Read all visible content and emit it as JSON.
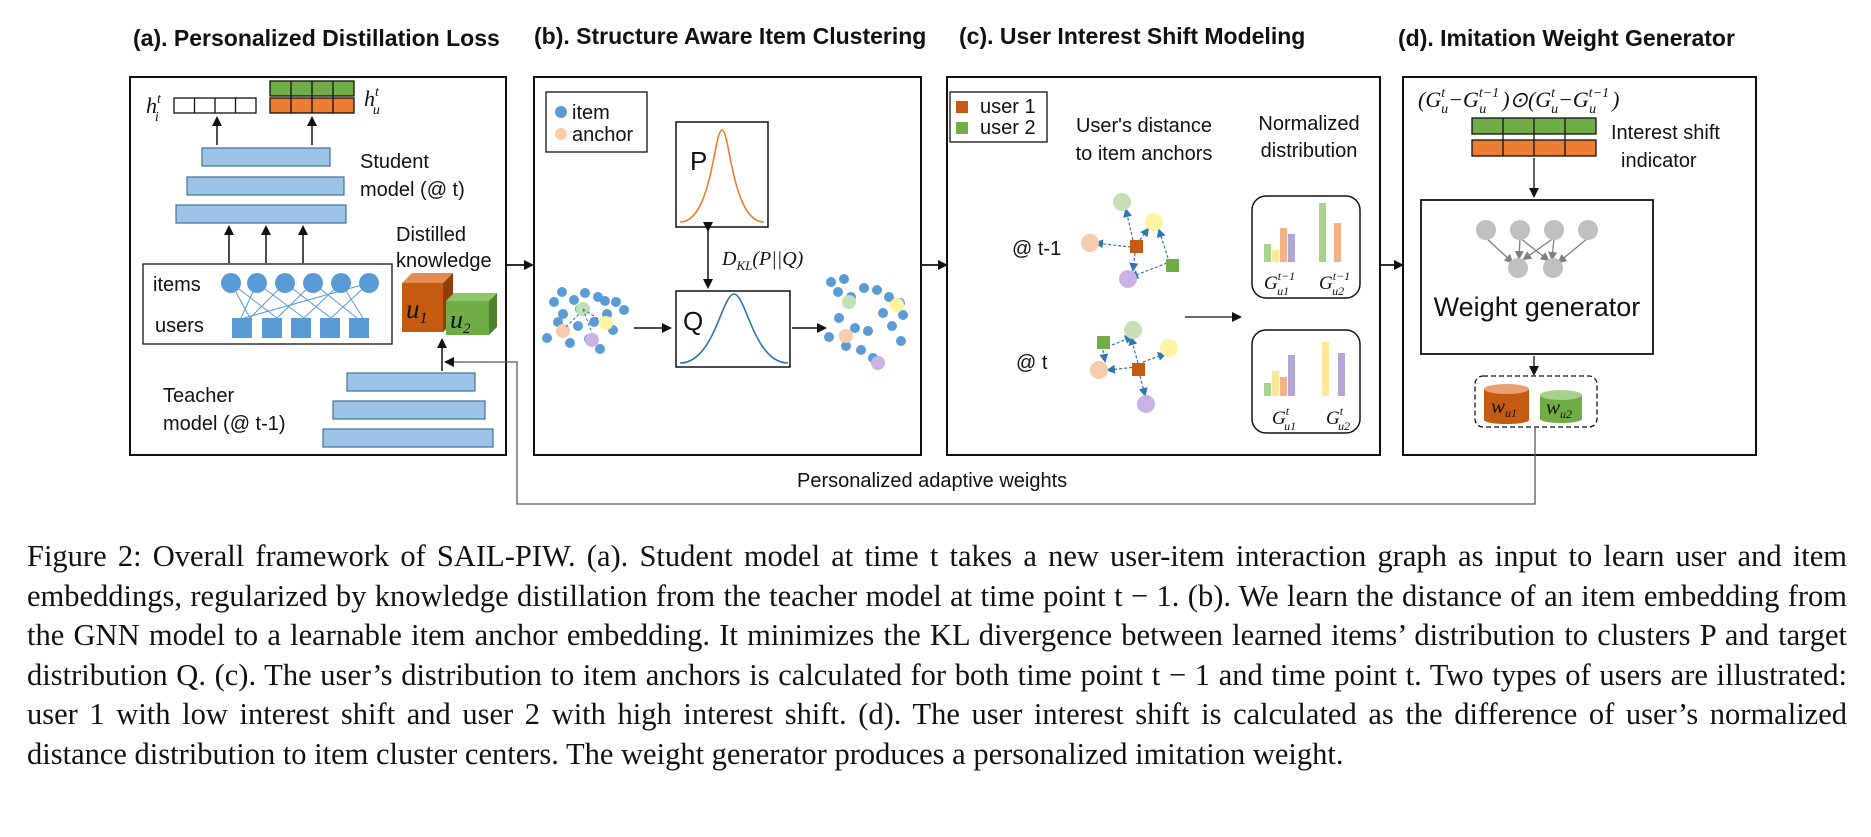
{
  "panels": {
    "a": {
      "title": "(a).  Personalized Distillation Loss",
      "student_line1": "Student",
      "student_line2": "model (@ t)",
      "distilled_line1": "Distilled",
      "distilled_line2": "knowledge",
      "items": "items",
      "users": "users",
      "teacher_line1": "Teacher",
      "teacher_line2": "model (@ t-1)",
      "h_item": "h",
      "h_item_sub": "i",
      "h_item_sup": "t",
      "h_user": "h",
      "h_user_sub": "u",
      "h_user_sup": "t",
      "cube1": "u",
      "cube1_sub": "1",
      "cube2": "u",
      "cube2_sub": "2"
    },
    "b": {
      "title": "(b). Structure Aware Item Clustering",
      "legend_item": "item",
      "legend_anchor": "anchor",
      "p_label": "P",
      "q_label": "Q",
      "kl": "D",
      "kl_sub": "KL",
      "kl_args": "(P||Q)"
    },
    "c": {
      "title": "(c). User Interest Shift Modeling",
      "legend_user1": "user 1",
      "legend_user2": "user 2",
      "dist_line1": "User's distance",
      "dist_line2": "to item anchors",
      "norm_line1": "Normalized",
      "norm_line2": "distribution",
      "time_prev": "@ t-1",
      "time_now": "@ t",
      "g1_prev": "G",
      "g1_prev_sub": "u1",
      "g1_prev_sup": "t−1",
      "g2_prev": "G",
      "g2_prev_sub": "u2",
      "g2_prev_sup": "t−1",
      "g1_now": "G",
      "g1_now_sub": "u1",
      "g1_now_sup": "t",
      "g2_now": "G",
      "g2_now_sub": "u2",
      "g2_now_sup": "t"
    },
    "d": {
      "title": "(d). Imitation Weight Generator",
      "formula": "(G",
      "formula_full": "(Gut−Gut−1)⊙(Gut−Gut−1)",
      "shift_line1": "Interest shift",
      "shift_line2": "indicator",
      "generator": "Weight generator",
      "w1": "w",
      "w1_sub": "u1",
      "w2": "w",
      "w2_sub": "u2"
    }
  },
  "feedback_label": "Personalized adaptive weights",
  "caption": "Figure 2: Overall framework of SAIL-PIW. (a). Student model at time t takes a new user-item interaction graph as input to learn user and item embeddings, regularized by knowledge distillation from the teacher model at time point t − 1. (b). We learn the distance of an item embedding from the GNN model to a learnable item anchor embedding. It minimizes the KL divergence between learned items’ distribution to clusters P and target distribution Q. (c). The user’s distribution to item anchors is calculated for both time point t − 1 and time point t. Two types of users are illustrated: user 1 with low interest shift and user 2 with high interest shift. (d). The user interest shift is calculated as the difference of user’s normalized distance distribution to item cluster centers. The weight generator produces a personalized imitation weight.",
  "colors": {
    "layer_blue": "#9DC3E6",
    "node_blue": "#5B9BD5",
    "user1_orange": "#C55A11",
    "user2_green": "#70AD47",
    "anchor_pink": "#F8CBAD",
    "anchor_yellow": "#FFF2A0",
    "anchor_green": "#C5E0B4",
    "anchor_purple": "#C9B3E6",
    "gray_node": "#BFBFBF",
    "bar_orange": "#F4B183",
    "bar_yellow": "#FFE699",
    "bar_purple": "#B4A7D6",
    "bar_green": "#A9D18E"
  }
}
